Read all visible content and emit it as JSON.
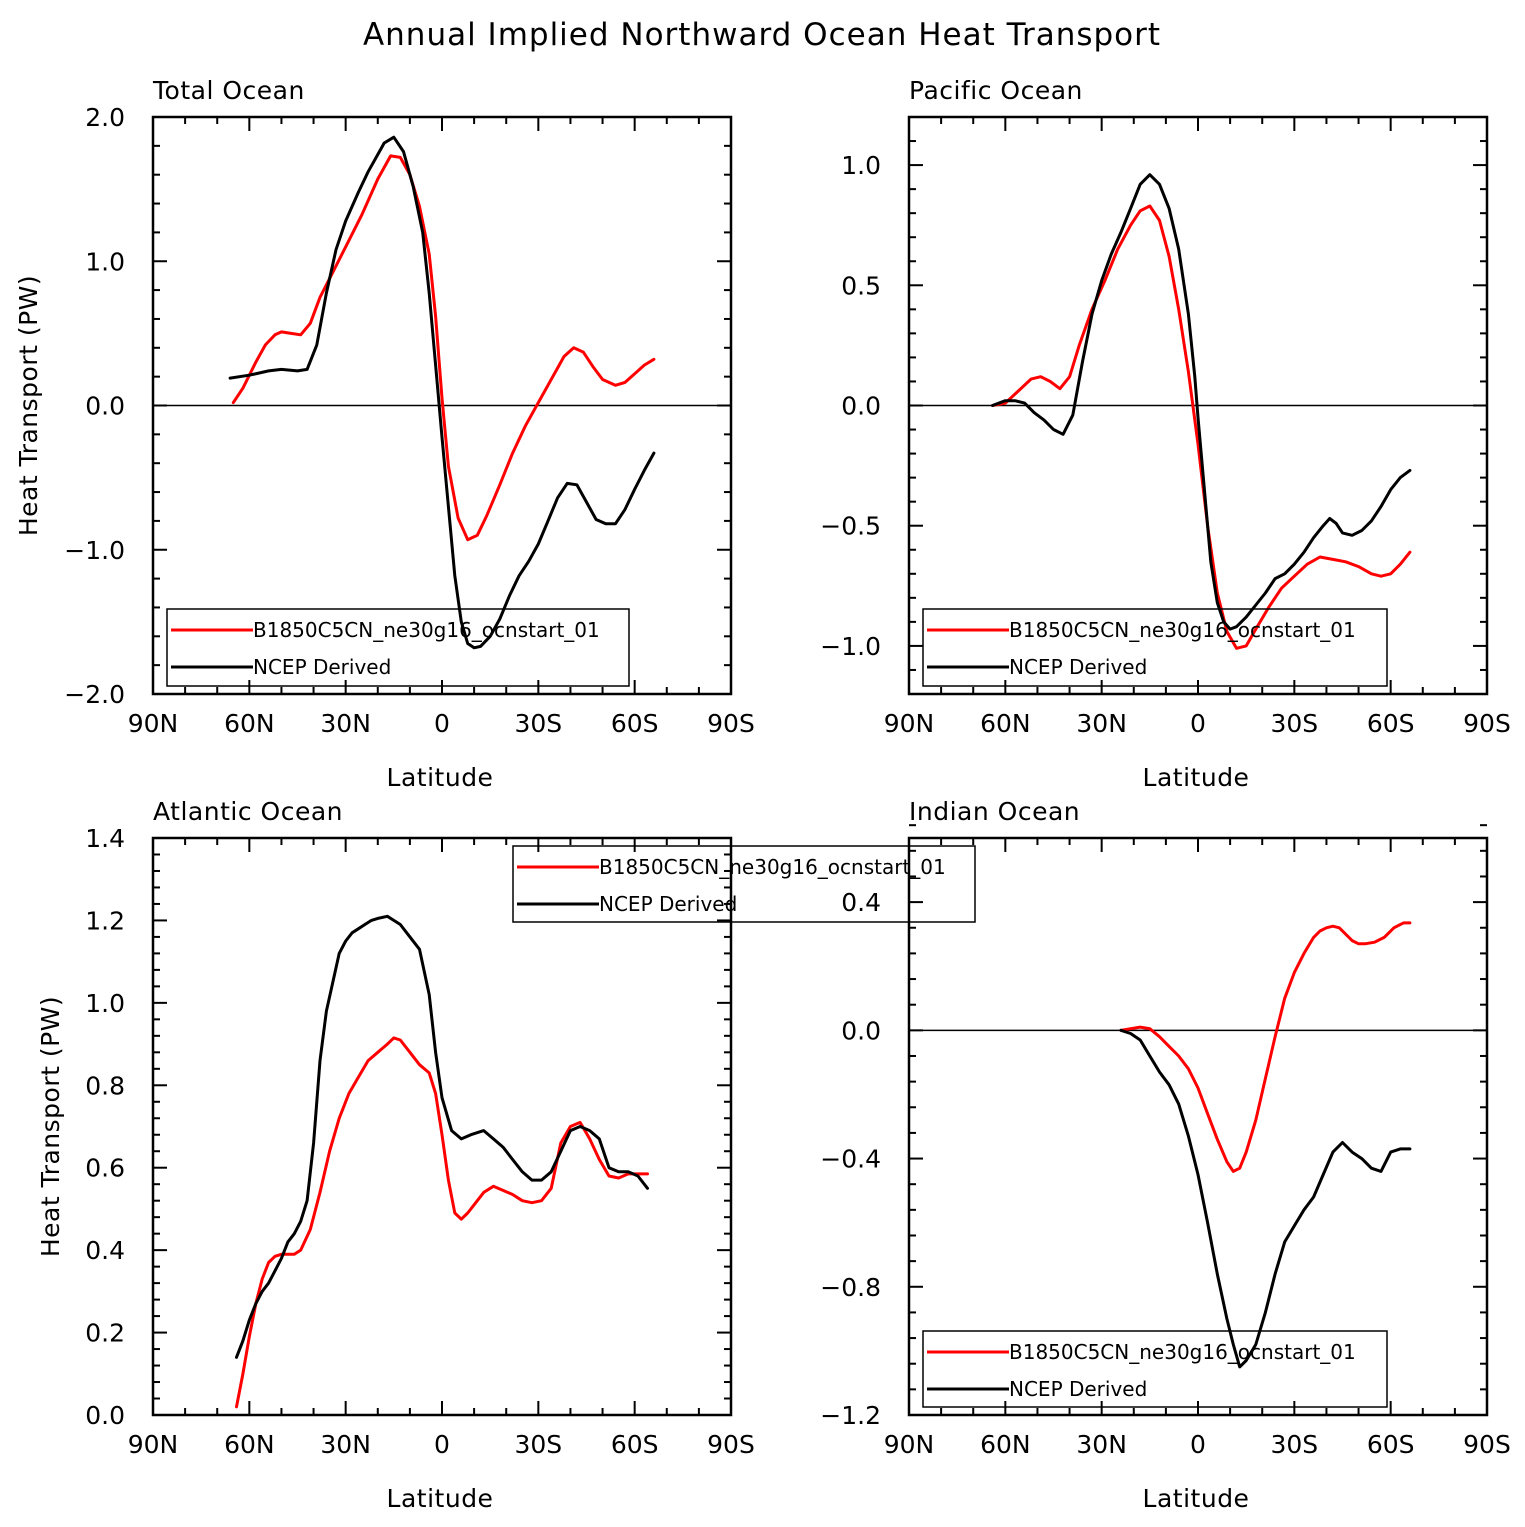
{
  "figure": {
    "title": "Annual Implied Northward Ocean Heat Transport"
  },
  "colors": {
    "model": "#ff0000",
    "obs": "#000000",
    "axis": "#000000"
  },
  "chart_data": [
    {
      "type": "line",
      "title": "Total Ocean",
      "xlabel": "Latitude",
      "ylabel": "Heat Transport (PW)",
      "xlim": [
        90,
        -90
      ],
      "ylim": [
        -2.0,
        2.0
      ],
      "xticks": [
        90,
        60,
        30,
        0,
        -30,
        -60,
        -90
      ],
      "xtick_labels": [
        "90N",
        "60N",
        "30N",
        "0",
        "30S",
        "60S",
        "90S"
      ],
      "yticks": [
        -2.0,
        -1.0,
        0.0,
        1.0,
        2.0
      ],
      "ytick_labels": [
        "−2.0",
        "−1.0",
        "0.0",
        "1.0",
        "2.0"
      ],
      "zero_line": true,
      "legend": "bottom-left",
      "series": [
        {
          "name": "B1850C5CN_ne30g16_ocnstart_01",
          "color": "#ff0000",
          "x": [
            65,
            62,
            58,
            55,
            52,
            50,
            47,
            44,
            41,
            38,
            35,
            30,
            25,
            20,
            16,
            13,
            10,
            7,
            4,
            2,
            0,
            -2,
            -5,
            -8,
            -11,
            -14,
            -18,
            -22,
            -26,
            -30,
            -34,
            -38,
            -41,
            -44,
            -47,
            -50,
            -54,
            -57,
            -60,
            -63,
            -66
          ],
          "y": [
            0.02,
            0.12,
            0.3,
            0.42,
            0.49,
            0.51,
            0.5,
            0.49,
            0.57,
            0.75,
            0.88,
            1.1,
            1.32,
            1.57,
            1.73,
            1.72,
            1.6,
            1.38,
            1.05,
            0.62,
            0.05,
            -0.42,
            -0.78,
            -0.93,
            -0.9,
            -0.76,
            -0.55,
            -0.33,
            -0.14,
            0.02,
            0.18,
            0.34,
            0.4,
            0.37,
            0.27,
            0.18,
            0.14,
            0.16,
            0.22,
            0.28,
            0.32
          ]
        },
        {
          "name": "NCEP Derived",
          "color": "#000000",
          "x": [
            66,
            60,
            54,
            50,
            45,
            42,
            39,
            36,
            33,
            30,
            26,
            23,
            20,
            18,
            15,
            12,
            9,
            6,
            4,
            2,
            0,
            -2,
            -4,
            -6,
            -8,
            -10,
            -12,
            -15,
            -18,
            -21,
            -24,
            -27,
            -30,
            -33,
            -36,
            -39,
            -42,
            -45,
            -48,
            -51,
            -54,
            -57,
            -60,
            -63,
            -66
          ],
          "y": [
            0.19,
            0.21,
            0.24,
            0.25,
            0.24,
            0.25,
            0.42,
            0.78,
            1.08,
            1.28,
            1.48,
            1.62,
            1.74,
            1.82,
            1.86,
            1.76,
            1.52,
            1.2,
            0.78,
            0.28,
            -0.22,
            -0.7,
            -1.18,
            -1.5,
            -1.65,
            -1.68,
            -1.67,
            -1.6,
            -1.48,
            -1.32,
            -1.18,
            -1.08,
            -0.96,
            -0.8,
            -0.64,
            -0.54,
            -0.55,
            -0.67,
            -0.79,
            -0.82,
            -0.82,
            -0.72,
            -0.58,
            -0.45,
            -0.33
          ]
        }
      ]
    },
    {
      "type": "line",
      "title": "Pacific Ocean",
      "xlabel": "Latitude",
      "ylabel": "",
      "xlim": [
        90,
        -90
      ],
      "ylim": [
        -1.2,
        1.2
      ],
      "xticks": [
        90,
        60,
        30,
        0,
        -30,
        -60,
        -90
      ],
      "xtick_labels": [
        "90N",
        "60N",
        "30N",
        "0",
        "30S",
        "60S",
        "90S"
      ],
      "yticks": [
        -1.0,
        -0.5,
        0.0,
        0.5,
        1.0
      ],
      "ytick_labels": [
        "−1.0",
        "−0.5",
        "0.0",
        "0.5",
        "1.0"
      ],
      "zero_line": true,
      "legend": "bottom-left",
      "series": [
        {
          "name": "B1850C5CN_ne30g16_ocnstart_01",
          "color": "#ff0000",
          "x": [
            64,
            60,
            56,
            52,
            49,
            46,
            43,
            40,
            37,
            33,
            29,
            25,
            21,
            18,
            15,
            12,
            9,
            6,
            3,
            0,
            -3,
            -6,
            -9,
            -12,
            -15,
            -18,
            -22,
            -26,
            -30,
            -34,
            -38,
            -42,
            -46,
            -50,
            -54,
            -57,
            -60,
            -63,
            -66
          ],
          "y": [
            0.0,
            0.01,
            0.06,
            0.11,
            0.12,
            0.1,
            0.07,
            0.12,
            0.25,
            0.4,
            0.52,
            0.65,
            0.75,
            0.81,
            0.83,
            0.77,
            0.62,
            0.4,
            0.14,
            -0.16,
            -0.5,
            -0.78,
            -0.94,
            -1.01,
            -1.0,
            -0.93,
            -0.84,
            -0.76,
            -0.71,
            -0.66,
            -0.63,
            -0.64,
            -0.65,
            -0.67,
            -0.7,
            -0.71,
            -0.7,
            -0.66,
            -0.61
          ]
        },
        {
          "name": "NCEP Derived",
          "color": "#000000",
          "x": [
            64,
            60,
            57,
            54,
            51,
            48,
            45,
            42,
            39,
            36,
            33,
            30,
            27,
            24,
            21,
            18,
            15,
            12,
            9,
            6,
            3,
            1,
            0,
            -2,
            -4,
            -6,
            -8,
            -10,
            -12,
            -15,
            -18,
            -21,
            -24,
            -27,
            -30,
            -33,
            -36,
            -39,
            -41,
            -43,
            -45,
            -48,
            -51,
            -54,
            -57,
            -60,
            -63,
            -66
          ],
          "y": [
            0.0,
            0.02,
            0.02,
            0.01,
            -0.03,
            -0.06,
            -0.1,
            -0.12,
            -0.04,
            0.18,
            0.38,
            0.52,
            0.63,
            0.72,
            0.82,
            0.92,
            0.96,
            0.92,
            0.82,
            0.65,
            0.38,
            0.12,
            -0.05,
            -0.35,
            -0.65,
            -0.82,
            -0.9,
            -0.93,
            -0.92,
            -0.88,
            -0.83,
            -0.78,
            -0.72,
            -0.7,
            -0.66,
            -0.61,
            -0.55,
            -0.5,
            -0.47,
            -0.49,
            -0.53,
            -0.54,
            -0.52,
            -0.48,
            -0.42,
            -0.35,
            -0.3,
            -0.27
          ]
        }
      ]
    },
    {
      "type": "line",
      "title": "Atlantic Ocean",
      "xlabel": "Latitude",
      "ylabel": "Heat Transport (PW)",
      "xlim": [
        90,
        -90
      ],
      "ylim": [
        0.0,
        1.4
      ],
      "xticks": [
        90,
        60,
        30,
        0,
        -30,
        -60,
        -90
      ],
      "xtick_labels": [
        "90N",
        "60N",
        "30N",
        "0",
        "30S",
        "60S",
        "90S"
      ],
      "yticks": [
        0.0,
        0.2,
        0.4,
        0.6,
        0.8,
        1.0,
        1.2,
        1.4
      ],
      "ytick_labels": [
        "0.0",
        "0.2",
        "0.4",
        "0.6",
        "0.8",
        "1.0",
        "1.2",
        "1.4"
      ],
      "zero_line": false,
      "legend": "top-center",
      "series": [
        {
          "name": "B1850C5CN_ne30g16_ocnstart_01",
          "color": "#ff0000",
          "x": [
            64,
            62,
            60,
            58,
            56,
            54,
            52,
            50,
            48,
            46,
            44,
            41,
            38,
            35,
            32,
            29,
            26,
            23,
            20,
            17,
            15,
            13,
            10,
            7,
            4,
            2,
            0,
            -2,
            -4,
            -6,
            -8,
            -10,
            -13,
            -16,
            -19,
            -22,
            -25,
            -28,
            -31,
            -34,
            -37,
            -40,
            -43,
            -46,
            -49,
            -52,
            -55,
            -58,
            -61,
            -64
          ],
          "y": [
            0.02,
            0.1,
            0.19,
            0.27,
            0.33,
            0.37,
            0.385,
            0.39,
            0.39,
            0.39,
            0.4,
            0.45,
            0.54,
            0.64,
            0.72,
            0.78,
            0.82,
            0.86,
            0.88,
            0.9,
            0.915,
            0.91,
            0.88,
            0.85,
            0.83,
            0.78,
            0.68,
            0.57,
            0.49,
            0.475,
            0.49,
            0.51,
            0.54,
            0.555,
            0.545,
            0.535,
            0.52,
            0.515,
            0.52,
            0.55,
            0.66,
            0.7,
            0.71,
            0.67,
            0.62,
            0.58,
            0.575,
            0.585,
            0.585,
            0.585
          ]
        },
        {
          "name": "NCEP Derived",
          "color": "#000000",
          "x": [
            64,
            62,
            60,
            58,
            56,
            54,
            52,
            50,
            48,
            46,
            44,
            42,
            40,
            38,
            36,
            34,
            32,
            30,
            28,
            26,
            24,
            22,
            20,
            17,
            15,
            13,
            10,
            7,
            4,
            2,
            0,
            -3,
            -6,
            -9,
            -13,
            -16,
            -19,
            -22,
            -25,
            -28,
            -31,
            -34,
            -37,
            -40,
            -43,
            -46,
            -49,
            -52,
            -55,
            -58,
            -61,
            -64
          ],
          "y": [
            0.14,
            0.18,
            0.23,
            0.27,
            0.3,
            0.32,
            0.35,
            0.38,
            0.42,
            0.44,
            0.47,
            0.52,
            0.66,
            0.86,
            0.98,
            1.05,
            1.12,
            1.15,
            1.17,
            1.18,
            1.19,
            1.2,
            1.205,
            1.21,
            1.2,
            1.19,
            1.16,
            1.13,
            1.02,
            0.88,
            0.77,
            0.69,
            0.67,
            0.68,
            0.69,
            0.67,
            0.65,
            0.62,
            0.59,
            0.57,
            0.57,
            0.59,
            0.64,
            0.69,
            0.7,
            0.69,
            0.67,
            0.6,
            0.59,
            0.59,
            0.58,
            0.55
          ]
        }
      ]
    },
    {
      "type": "line",
      "title": "Indian Ocean",
      "xlabel": "Latitude",
      "ylabel": "",
      "xlim": [
        90,
        -90
      ],
      "ylim": [
        -1.2,
        0.6
      ],
      "xticks": [
        90,
        60,
        30,
        0,
        -30,
        -60,
        -90
      ],
      "xtick_labels": [
        "90N",
        "60N",
        "30N",
        "0",
        "30S",
        "60S",
        "90S"
      ],
      "yticks": [
        -1.2,
        -0.8,
        -0.4,
        0.0,
        0.4
      ],
      "ytick_labels": [
        "−1.2",
        "−0.8",
        "−0.4",
        "0.0",
        "0.4"
      ],
      "zero_line": true,
      "legend": "bottom-left",
      "series": [
        {
          "name": "B1850C5CN_ne30g16_ocnstart_01",
          "color": "#ff0000",
          "x": [
            24,
            21,
            18,
            15,
            12,
            9,
            6,
            3,
            0,
            -3,
            -6,
            -9,
            -11,
            -13,
            -15,
            -18,
            -21,
            -24,
            -27,
            -30,
            -33,
            -36,
            -38,
            -40,
            -42,
            -44,
            -46,
            -48,
            -50,
            -52,
            -55,
            -58,
            -61,
            -64,
            -66
          ],
          "y": [
            0.0,
            0.005,
            0.01,
            0.005,
            -0.02,
            -0.05,
            -0.08,
            -0.12,
            -0.18,
            -0.26,
            -0.34,
            -0.41,
            -0.44,
            -0.43,
            -0.38,
            -0.28,
            -0.15,
            -0.02,
            0.1,
            0.18,
            0.24,
            0.29,
            0.31,
            0.32,
            0.325,
            0.32,
            0.3,
            0.28,
            0.27,
            0.27,
            0.275,
            0.29,
            0.32,
            0.335,
            0.335
          ]
        },
        {
          "name": "NCEP Derived",
          "color": "#000000",
          "x": [
            24,
            21,
            18,
            15,
            12,
            9,
            6,
            3,
            0,
            -3,
            -6,
            -9,
            -11,
            -13,
            -15,
            -18,
            -21,
            -24,
            -27,
            -30,
            -33,
            -36,
            -39,
            -42,
            -45,
            -48,
            -51,
            -54,
            -57,
            -60,
            -63,
            -66
          ],
          "y": [
            0.0,
            -0.01,
            -0.03,
            -0.08,
            -0.13,
            -0.17,
            -0.23,
            -0.33,
            -0.45,
            -0.6,
            -0.76,
            -0.9,
            -0.98,
            -1.05,
            -1.03,
            -0.98,
            -0.88,
            -0.76,
            -0.66,
            -0.61,
            -0.56,
            -0.52,
            -0.45,
            -0.38,
            -0.35,
            -0.38,
            -0.4,
            -0.43,
            -0.44,
            -0.38,
            -0.37,
            -0.37
          ]
        }
      ]
    }
  ]
}
